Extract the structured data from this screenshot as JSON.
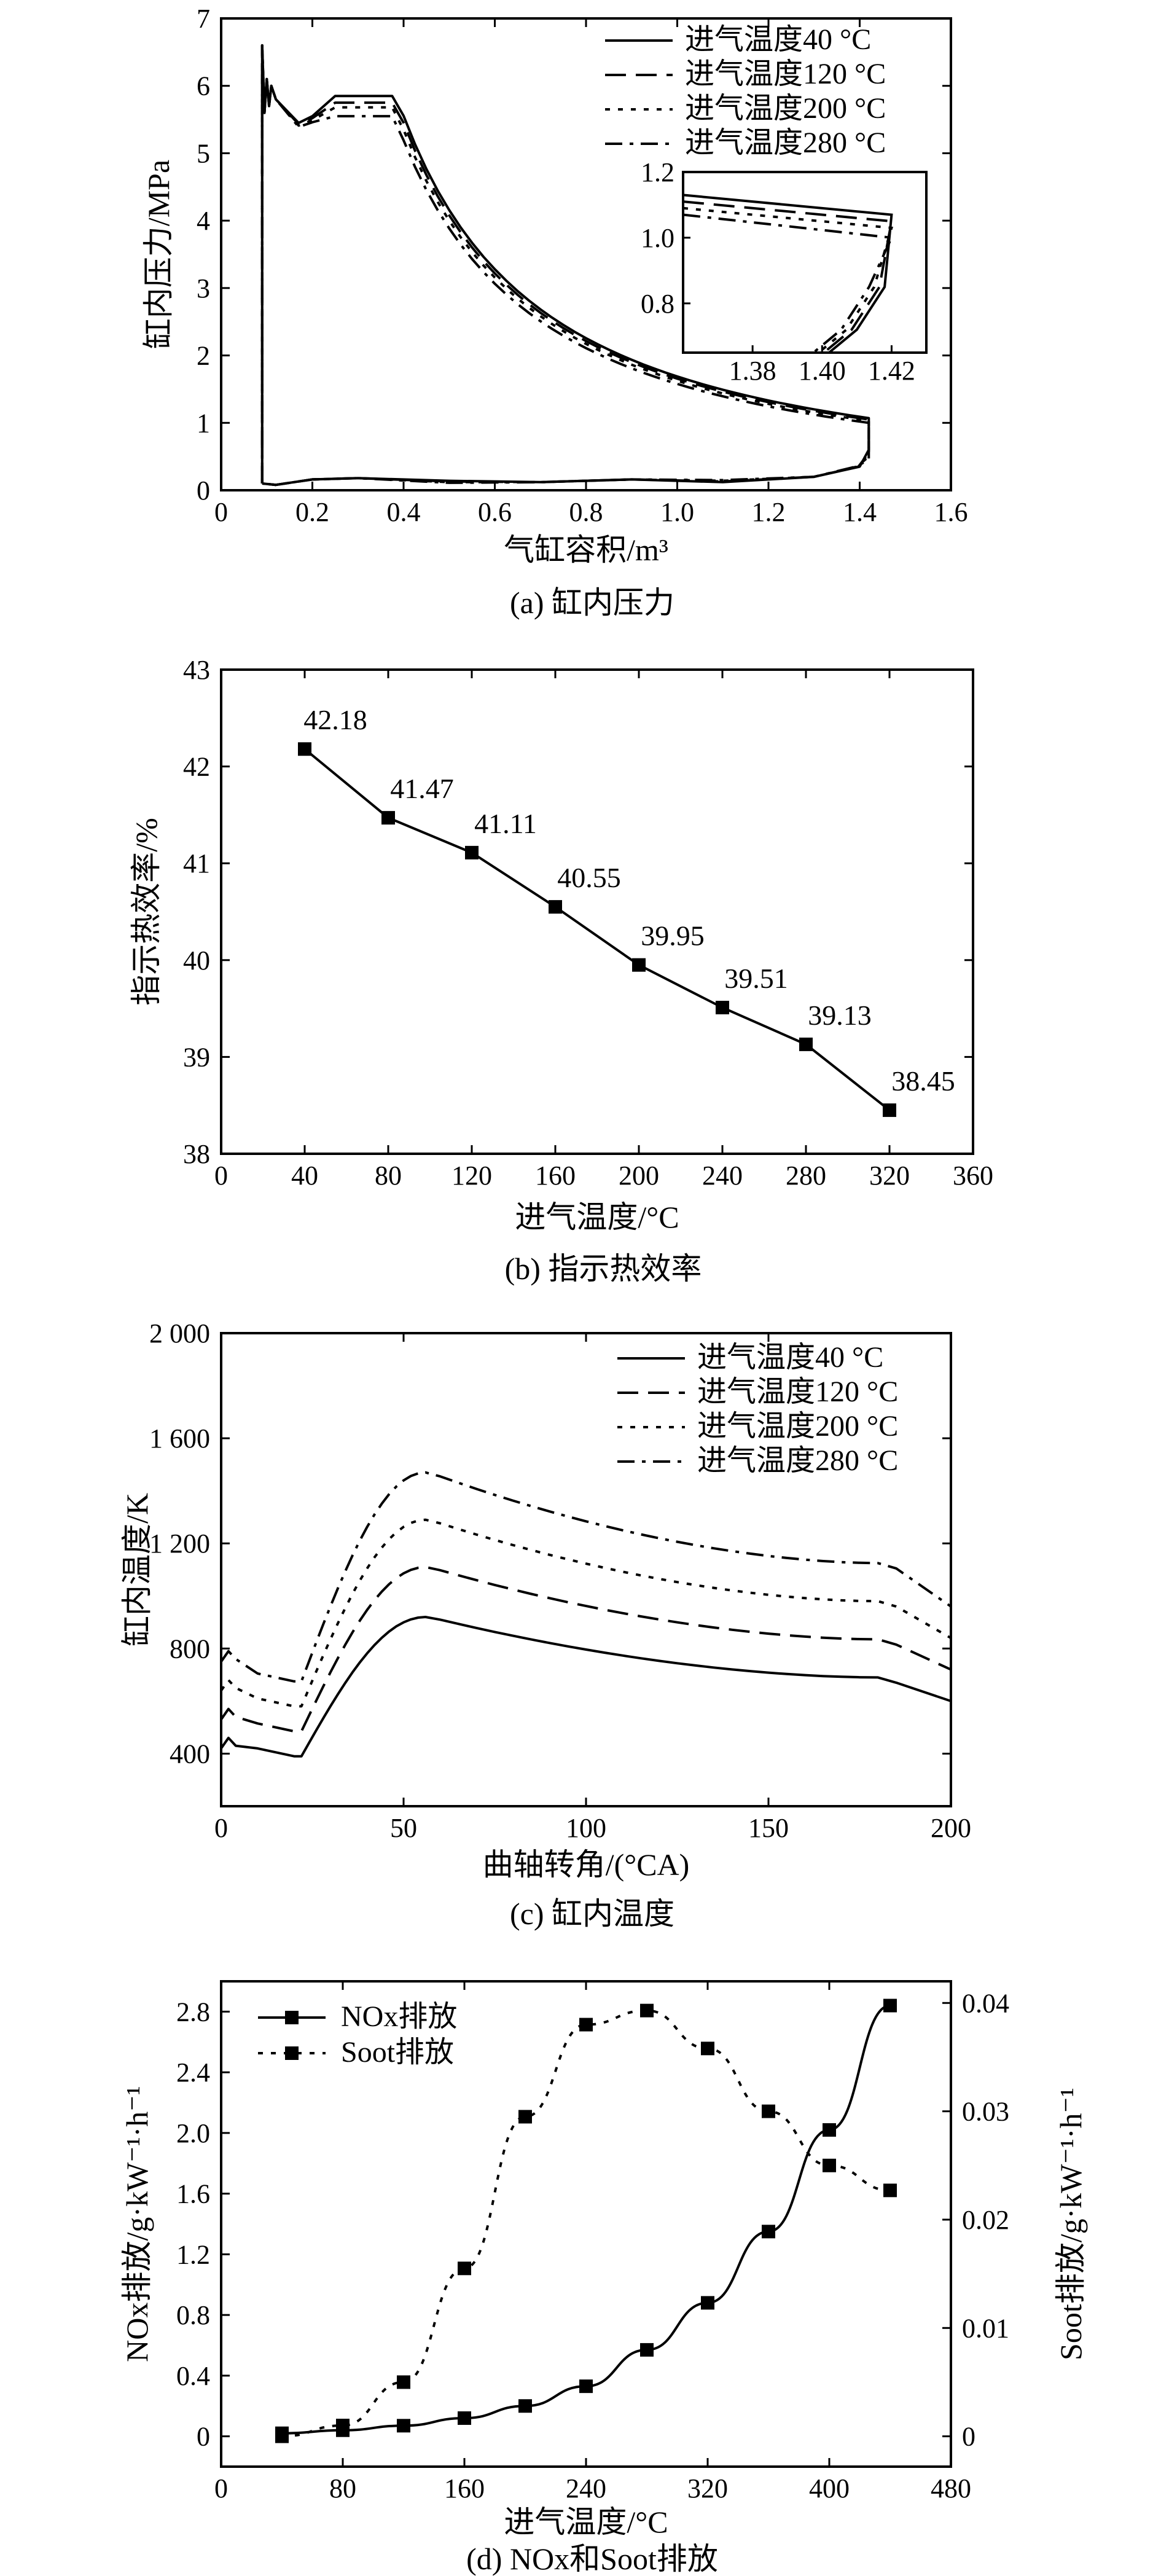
{
  "chart_data": [
    {
      "type": "line",
      "ylabel": "缸内压力/MPa",
      "xlabel": "气缸容积/m³",
      "caption": "(a) 缸内压力",
      "xlim": [
        0,
        1.6
      ],
      "ylim": [
        0,
        7
      ],
      "xticks": [
        "0",
        "0.2",
        "0.4",
        "0.6",
        "0.8",
        "1.0",
        "1.2",
        "1.4",
        "1.6"
      ],
      "yticks": [
        "0",
        "1",
        "2",
        "3",
        "4",
        "5",
        "6",
        "7"
      ],
      "legend": {
        "position": "top-right",
        "entries": [
          "进气温度40 °C",
          "进气温度120 °C",
          "进气温度200 °C",
          "进气温度280 °C"
        ]
      },
      "series": [
        {
          "name": "进气温度40 °C",
          "style": "solid",
          "peak": 5.85,
          "end_pressure": 1.07
        },
        {
          "name": "进气温度120 °C",
          "style": "dashed",
          "peak": 5.75,
          "end_pressure": 1.05
        },
        {
          "name": "进气温度200 °C",
          "style": "dotted",
          "peak": 5.68,
          "end_pressure": 1.03
        },
        {
          "name": "进气温度280 °C",
          "style": "dashdot",
          "peak": 5.55,
          "end_pressure": 1.0
        }
      ],
      "inset": {
        "xlim": [
          1.36,
          1.43
        ],
        "ylim": [
          0.65,
          1.2
        ],
        "xticks": [
          "1.38",
          "1.40",
          "1.42"
        ],
        "yticks": [
          "0.8",
          "1.0",
          "1.2"
        ]
      }
    },
    {
      "type": "line",
      "ylabel": "指示热效率/%",
      "xlabel": "进气温度/°C",
      "caption": "(b) 指示热效率",
      "xlim": [
        0,
        360
      ],
      "ylim": [
        38,
        43
      ],
      "xticks": [
        "0",
        "40",
        "80",
        "120",
        "160",
        "200",
        "240",
        "280",
        "320",
        "360"
      ],
      "yticks": [
        "38",
        "39",
        "40",
        "41",
        "42",
        "43"
      ],
      "x": [
        40,
        80,
        120,
        160,
        200,
        240,
        280,
        320
      ],
      "values": [
        42.18,
        41.47,
        41.11,
        40.55,
        39.95,
        39.51,
        39.13,
        38.45
      ],
      "labels": [
        "42.18",
        "41.47",
        "41.11",
        "40.55",
        "39.95",
        "39.51",
        "39.13",
        "38.45"
      ]
    },
    {
      "type": "line",
      "ylabel": "缸内温度/K",
      "xlabel": "曲轴转角/(°CA)",
      "caption": "(c) 缸内温度",
      "xlim": [
        0,
        200
      ],
      "ylim": [
        200,
        2000
      ],
      "xticks": [
        "0",
        "50",
        "100",
        "150",
        "200"
      ],
      "yticks": [
        "400",
        "800",
        "1 200",
        "1 600",
        "2 000"
      ],
      "legend": {
        "position": "top-right",
        "entries": [
          "进气温度40 °C",
          "进气温度120 °C",
          "进气温度200 °C",
          "进气温度280 °C"
        ]
      },
      "series": [
        {
          "name": "进气温度40 °C",
          "style": "solid",
          "peak": 920
        },
        {
          "name": "进气温度120 °C",
          "style": "dashed",
          "peak": 1110
        },
        {
          "name": "进气温度200 °C",
          "style": "dotted",
          "peak": 1290
        },
        {
          "name": "进气温度280 °C",
          "style": "dashdot",
          "peak": 1470
        }
      ]
    },
    {
      "type": "line",
      "ylabel": "NOx排放/g·kW⁻¹·h⁻¹",
      "ylabel_right": "Soot排放/g·kW⁻¹·h⁻¹",
      "xlabel": "进气温度/°C",
      "caption": "(d) NOx和Soot排放",
      "xlim": [
        0,
        480
      ],
      "ylim": [
        -0.2,
        3.0
      ],
      "ylim_right": [
        -0.0028,
        0.042
      ],
      "xticks": [
        "0",
        "80",
        "160",
        "240",
        "320",
        "400",
        "480"
      ],
      "yticks": [
        "0",
        "0.4",
        "0.8",
        "1.2",
        "1.6",
        "2.0",
        "2.4",
        "2.8"
      ],
      "yticks_right": [
        "0",
        "0.01",
        "0.02",
        "0.03",
        "0.04"
      ],
      "legend": {
        "position": "top-left",
        "entries": [
          "NOx排放",
          "Soot排放"
        ]
      },
      "x": [
        40,
        80,
        120,
        160,
        200,
        240,
        280,
        320,
        360,
        400,
        440
      ],
      "series": [
        {
          "name": "NOx排放",
          "axis": "left",
          "style": "solid",
          "values": [
            0.02,
            0.04,
            0.07,
            0.12,
            0.2,
            0.33,
            0.57,
            0.88,
            1.35,
            2.02,
            2.84
          ]
        },
        {
          "name": "Soot排放",
          "axis": "right",
          "style": "dotted",
          "values": [
            0.0,
            0.001,
            0.005,
            0.0155,
            0.0295,
            0.038,
            0.0393,
            0.0358,
            0.03,
            0.025,
            0.0227
          ]
        }
      ]
    }
  ]
}
